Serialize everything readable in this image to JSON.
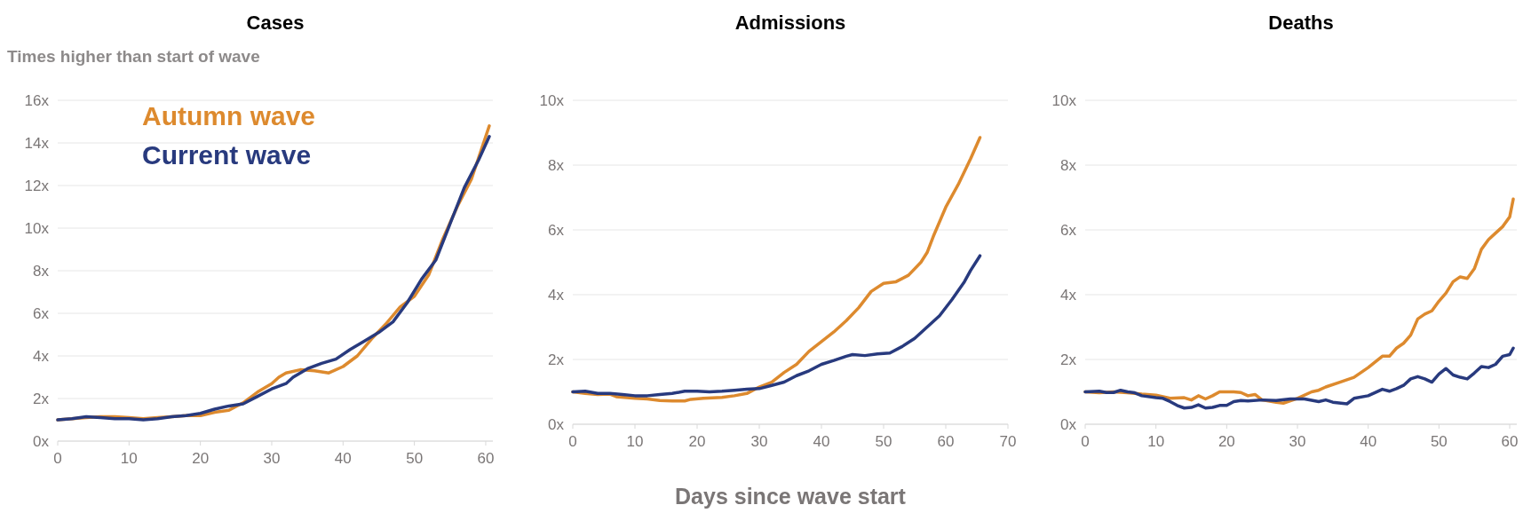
{
  "chart_data": [
    {
      "type": "line",
      "title": "Cases",
      "ylabel": "Times higher than start of wave",
      "xlim": [
        0,
        61
      ],
      "xticks": [
        0,
        10,
        20,
        30,
        40,
        50,
        60
      ],
      "ylim": [
        0,
        16
      ],
      "yticks": [
        {
          "value": 0,
          "label": "0x"
        },
        {
          "value": 2,
          "label": "2x"
        },
        {
          "value": 4,
          "label": "4x"
        },
        {
          "value": 6,
          "label": "6x"
        },
        {
          "value": 8,
          "label": "8x"
        },
        {
          "value": 10,
          "label": "10x"
        },
        {
          "value": 12,
          "label": "12x"
        },
        {
          "value": 14,
          "label": "14x"
        },
        {
          "value": 16,
          "label": "16x"
        }
      ],
      "grid": "y",
      "legend": "top left",
      "series": [
        {
          "name": "Autumn wave",
          "color": "#dd8a2e",
          "x": [
            0,
            2,
            4,
            6,
            8,
            10,
            12,
            14,
            16,
            18,
            20,
            22,
            24,
            26,
            28,
            30,
            31,
            32,
            34,
            36,
            38,
            40,
            42,
            44,
            46,
            48,
            50,
            52,
            54,
            56,
            58,
            60.5
          ],
          "values": [
            1.0,
            1.05,
            1.1,
            1.15,
            1.15,
            1.1,
            1.05,
            1.1,
            1.15,
            1.2,
            1.2,
            1.35,
            1.45,
            1.8,
            2.3,
            2.7,
            3.0,
            3.2,
            3.35,
            3.3,
            3.2,
            3.5,
            4.0,
            4.8,
            5.5,
            6.3,
            6.8,
            7.8,
            9.5,
            11.0,
            12.3,
            14.8
          ]
        },
        {
          "name": "Current wave",
          "color": "#283a7e",
          "x": [
            0,
            2,
            4,
            6,
            8,
            10,
            12,
            14,
            16,
            18,
            20,
            22,
            24,
            26,
            28,
            30,
            32,
            33,
            35,
            37,
            39,
            41,
            43,
            45,
            47,
            49,
            51,
            53,
            55,
            57,
            59,
            60.5
          ],
          "values": [
            1.0,
            1.05,
            1.15,
            1.1,
            1.05,
            1.05,
            1.0,
            1.05,
            1.15,
            1.2,
            1.3,
            1.5,
            1.65,
            1.75,
            2.1,
            2.45,
            2.7,
            3.0,
            3.4,
            3.65,
            3.85,
            4.3,
            4.7,
            5.1,
            5.6,
            6.5,
            7.6,
            8.5,
            10.2,
            11.9,
            13.2,
            14.3
          ]
        }
      ]
    },
    {
      "type": "line",
      "title": "Admissions",
      "xlabel": "Days since wave start",
      "xlim": [
        0,
        70
      ],
      "xticks": [
        0,
        10,
        20,
        30,
        40,
        50,
        60,
        70
      ],
      "ylim": [
        0,
        10
      ],
      "yticks": [
        {
          "value": 0,
          "label": "0x"
        },
        {
          "value": 2,
          "label": "2x"
        },
        {
          "value": 4,
          "label": "4x"
        },
        {
          "value": 6,
          "label": "6x"
        },
        {
          "value": 8,
          "label": "8x"
        },
        {
          "value": 10,
          "label": "10x"
        }
      ],
      "grid": "y",
      "series": [
        {
          "color": "#dd8a2e",
          "x": [
            0,
            2,
            4,
            6,
            7,
            10,
            12,
            14,
            16,
            18,
            19,
            21,
            24,
            26,
            28,
            30,
            32,
            34,
            36,
            38,
            40,
            42,
            44,
            46,
            48,
            50,
            52,
            54,
            56,
            57,
            58,
            60,
            62,
            64,
            65.5
          ],
          "values": [
            1.0,
            0.95,
            0.92,
            0.93,
            0.85,
            0.8,
            0.78,
            0.73,
            0.72,
            0.72,
            0.77,
            0.8,
            0.83,
            0.88,
            0.95,
            1.15,
            1.3,
            1.6,
            1.85,
            2.25,
            2.55,
            2.85,
            3.2,
            3.6,
            4.1,
            4.35,
            4.4,
            4.6,
            5.0,
            5.3,
            5.8,
            6.7,
            7.4,
            8.2,
            8.85
          ]
        },
        {
          "color": "#283a7e",
          "x": [
            0,
            2,
            4,
            6,
            8,
            10,
            12,
            14,
            16,
            18,
            20,
            22,
            24,
            26,
            28,
            30,
            32,
            34,
            36,
            38,
            40,
            42,
            44,
            45,
            47,
            49,
            51,
            53,
            55,
            57,
            59,
            61,
            63,
            64,
            65.5
          ],
          "values": [
            1.0,
            1.02,
            0.95,
            0.95,
            0.92,
            0.88,
            0.88,
            0.92,
            0.95,
            1.02,
            1.02,
            1.0,
            1.02,
            1.05,
            1.08,
            1.1,
            1.2,
            1.3,
            1.5,
            1.65,
            1.85,
            1.97,
            2.1,
            2.15,
            2.12,
            2.17,
            2.2,
            2.4,
            2.65,
            3.0,
            3.35,
            3.85,
            4.4,
            4.75,
            5.2
          ]
        }
      ]
    },
    {
      "type": "line",
      "title": "Deaths",
      "xlim": [
        0,
        61
      ],
      "xticks": [
        0,
        10,
        20,
        30,
        40,
        50,
        60
      ],
      "ylim": [
        0,
        10
      ],
      "yticks": [
        {
          "value": 0,
          "label": "0x"
        },
        {
          "value": 2,
          "label": "2x"
        },
        {
          "value": 4,
          "label": "4x"
        },
        {
          "value": 6,
          "label": "6x"
        },
        {
          "value": 8,
          "label": "8x"
        },
        {
          "value": 10,
          "label": "10x"
        }
      ],
      "grid": "y",
      "series": [
        {
          "color": "#dd8a2e",
          "x": [
            0,
            2,
            4,
            6,
            8,
            10,
            12,
            14,
            15,
            16,
            17,
            18,
            19,
            21,
            22,
            23,
            24,
            25,
            27,
            28,
            30,
            32,
            33,
            34,
            36,
            38,
            40,
            42,
            43,
            44,
            45,
            46,
            47,
            48,
            49,
            50,
            51,
            52,
            53,
            54,
            55,
            56,
            57,
            58,
            59,
            60,
            60.5
          ],
          "values": [
            1.0,
            0.97,
            1.0,
            0.97,
            0.93,
            0.9,
            0.8,
            0.82,
            0.75,
            0.88,
            0.78,
            0.88,
            1.0,
            1.0,
            0.98,
            0.88,
            0.92,
            0.75,
            0.68,
            0.65,
            0.8,
            1.0,
            1.05,
            1.15,
            1.3,
            1.45,
            1.75,
            2.1,
            2.1,
            2.35,
            2.5,
            2.75,
            3.25,
            3.4,
            3.5,
            3.8,
            4.05,
            4.4,
            4.55,
            4.5,
            4.8,
            5.4,
            5.7,
            5.9,
            6.1,
            6.4,
            6.95
          ]
        },
        {
          "color": "#283a7e",
          "x": [
            0,
            2,
            3,
            4,
            5,
            6,
            7,
            8,
            10,
            11,
            12,
            13,
            14,
            15,
            16,
            17,
            18,
            19,
            20,
            21,
            22,
            23,
            25,
            27,
            29,
            31,
            33,
            34,
            35,
            37,
            38,
            40,
            42,
            43,
            44,
            45,
            46,
            47,
            48,
            49,
            50,
            51,
            52,
            53,
            54,
            55,
            56,
            57,
            58,
            59,
            60,
            60.5
          ],
          "values": [
            1.0,
            1.02,
            0.98,
            0.98,
            1.05,
            1.0,
            0.97,
            0.88,
            0.82,
            0.8,
            0.7,
            0.58,
            0.5,
            0.52,
            0.6,
            0.5,
            0.52,
            0.58,
            0.58,
            0.7,
            0.73,
            0.72,
            0.75,
            0.73,
            0.78,
            0.78,
            0.7,
            0.75,
            0.68,
            0.63,
            0.8,
            0.88,
            1.08,
            1.02,
            1.1,
            1.2,
            1.4,
            1.47,
            1.4,
            1.3,
            1.55,
            1.72,
            1.52,
            1.45,
            1.4,
            1.58,
            1.78,
            1.75,
            1.85,
            2.1,
            2.15,
            2.35
          ]
        }
      ]
    }
  ]
}
